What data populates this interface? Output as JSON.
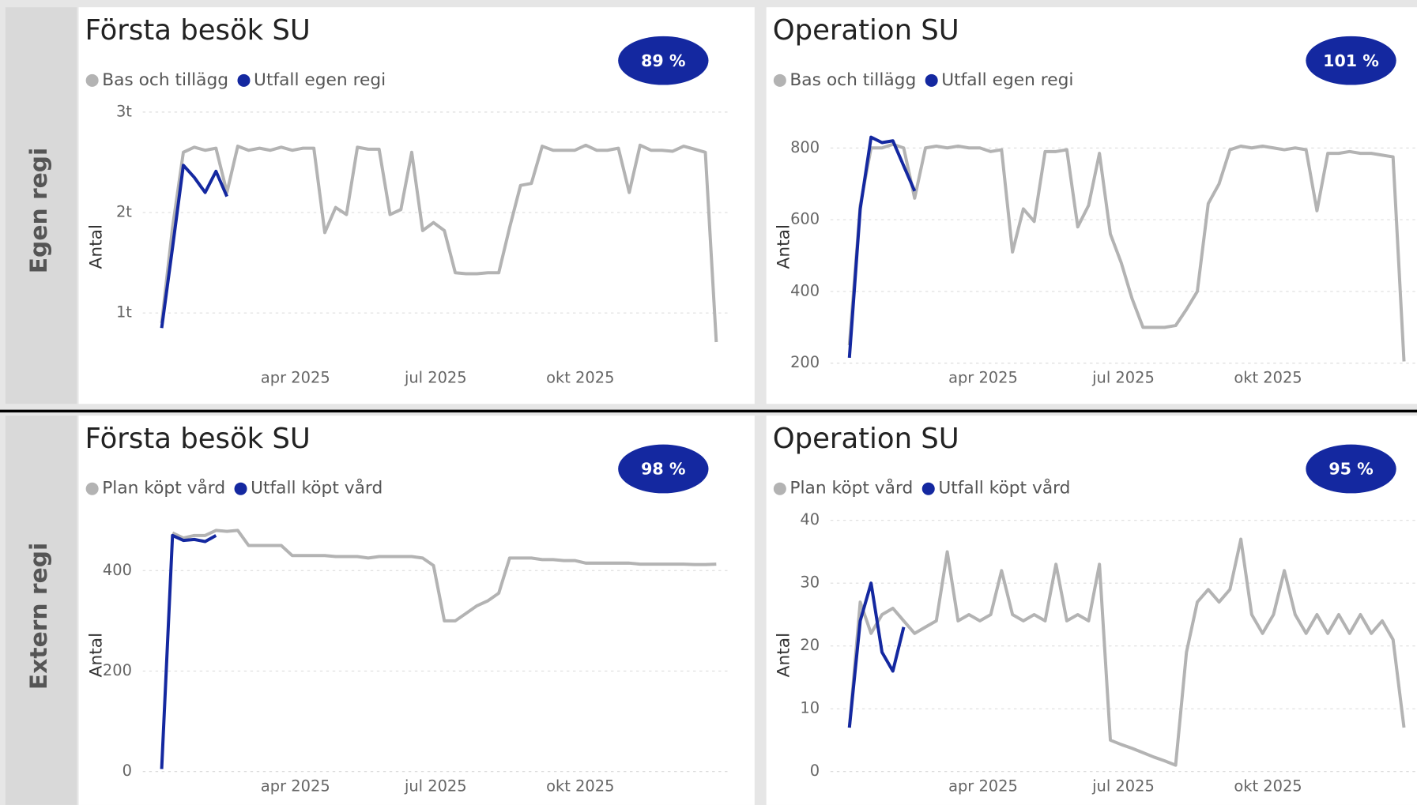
{
  "sections": [
    {
      "label": "Egen regi"
    },
    {
      "label": "Extern regi"
    }
  ],
  "chart_data": [
    {
      "type": "line",
      "title": "Första besök SU",
      "kpi": "89 %",
      "y_label": "Antal",
      "x": [
        1,
        2,
        3,
        4,
        5,
        6,
        7,
        8,
        9,
        10,
        11,
        12,
        13,
        14,
        15,
        16,
        17,
        18,
        19,
        20,
        21,
        22,
        23,
        24,
        25,
        26,
        27,
        28,
        29,
        30,
        31,
        32,
        33,
        34,
        35,
        36,
        37,
        38,
        39,
        40,
        41,
        42,
        43,
        44,
        45,
        46,
        47,
        48,
        49,
        50,
        51,
        52
      ],
      "xlim": [
        -1.4,
        53.2
      ],
      "xticks": [
        {
          "value": 13.3,
          "label": "apr 2025"
        },
        {
          "value": 26.2,
          "label": "jul 2025"
        },
        {
          "value": 39.5,
          "label": "okt 2025"
        }
      ],
      "ylim": [
        500,
        3000
      ],
      "yticks": [
        {
          "value": 1000,
          "label": "1t"
        },
        {
          "value": 2000,
          "label": "2t"
        },
        {
          "value": 3000,
          "label": "3t"
        }
      ],
      "grid": true,
      "series": [
        {
          "name": "Bas och tillägg",
          "color": "#b3b3b3",
          "values": [
            900,
            1850,
            2600,
            2650,
            2620,
            2640,
            2200,
            2660,
            2620,
            2640,
            2620,
            2650,
            2620,
            2640,
            2640,
            1800,
            2050,
            1980,
            2650,
            2630,
            2630,
            1980,
            2030,
            2600,
            1820,
            1900,
            1820,
            1400,
            1390,
            1390,
            1400,
            1400,
            1850,
            2270,
            2290,
            2660,
            2620,
            2620,
            2620,
            2670,
            2620,
            2620,
            2640,
            2200,
            2670,
            2620,
            2620,
            2610,
            2660,
            2630,
            2600,
            710
          ]
        },
        {
          "name": "Utfall egen regi",
          "color": "#1428a0",
          "values": [
            850,
            1650,
            2470,
            2350,
            2200,
            2410,
            2160,
            null,
            null,
            null,
            null,
            null,
            null,
            null,
            null,
            null,
            null,
            null,
            null,
            null,
            null,
            null,
            null,
            null,
            null,
            null,
            null,
            null,
            null,
            null,
            null,
            null,
            null,
            null,
            null,
            null,
            null,
            null,
            null,
            null,
            null,
            null,
            null,
            null,
            null,
            null,
            null,
            null,
            null,
            null,
            null,
            null
          ]
        }
      ]
    },
    {
      "type": "line",
      "title": "Operation SU",
      "kpi": "101 %",
      "y_label": "Antal",
      "x": [
        1,
        2,
        3,
        4,
        5,
        6,
        7,
        8,
        9,
        10,
        11,
        12,
        13,
        14,
        15,
        16,
        17,
        18,
        19,
        20,
        21,
        22,
        23,
        24,
        25,
        26,
        27,
        28,
        29,
        30,
        31,
        32,
        33,
        34,
        35,
        36,
        37,
        38,
        39,
        40,
        41,
        42,
        43,
        44,
        45,
        46,
        47,
        48,
        49,
        50,
        51,
        52
      ],
      "xlim": [
        -1.4,
        53.2
      ],
      "xticks": [
        {
          "value": 13.3,
          "label": "apr 2025"
        },
        {
          "value": 26.2,
          "label": "jul 2025"
        },
        {
          "value": 39.5,
          "label": "okt 2025"
        }
      ],
      "ylim": [
        200,
        900
      ],
      "yticks": [
        200,
        400,
        600,
        800
      ],
      "grid": true,
      "series": [
        {
          "name": "Bas och tillägg",
          "color": "#b3b3b3",
          "values": [
            250,
            640,
            800,
            800,
            810,
            800,
            660,
            800,
            805,
            800,
            805,
            800,
            800,
            790,
            795,
            510,
            630,
            595,
            790,
            790,
            795,
            580,
            640,
            785,
            560,
            480,
            380,
            300,
            300,
            300,
            305,
            350,
            400,
            645,
            700,
            795,
            805,
            800,
            805,
            800,
            795,
            800,
            795,
            625,
            785,
            785,
            790,
            785,
            785,
            780,
            775,
            205
          ]
        },
        {
          "name": "Utfall egen regi",
          "color": "#1428a0",
          "values": [
            215,
            630,
            830,
            815,
            820,
            750,
            680,
            null,
            null,
            null,
            null,
            null,
            null,
            null,
            null,
            null,
            null,
            null,
            null,
            null,
            null,
            null,
            null,
            null,
            null,
            null,
            null,
            null,
            null,
            null,
            null,
            null,
            null,
            null,
            null,
            null,
            null,
            null,
            null,
            null,
            null,
            null,
            null,
            null,
            null,
            null,
            null,
            null,
            null,
            null,
            null,
            null
          ]
        }
      ]
    },
    {
      "type": "line",
      "title": "Första besök SU",
      "kpi": "98 %",
      "y_label": "Antal",
      "x": [
        1,
        2,
        3,
        4,
        5,
        6,
        7,
        8,
        9,
        10,
        11,
        12,
        13,
        14,
        15,
        16,
        17,
        18,
        19,
        20,
        21,
        22,
        23,
        24,
        25,
        26,
        27,
        28,
        29,
        30,
        31,
        32,
        33,
        34,
        35,
        36,
        37,
        38,
        39,
        40,
        41,
        42,
        43,
        44,
        45,
        46,
        47,
        48,
        49,
        50,
        51,
        52
      ],
      "xlim": [
        -1.4,
        53.2
      ],
      "xticks": [
        {
          "value": 13.3,
          "label": "apr 2025"
        },
        {
          "value": 26.2,
          "label": "jul 2025"
        },
        {
          "value": 39.5,
          "label": "okt 2025"
        }
      ],
      "ylim": [
        0,
        500
      ],
      "yticks": [
        0,
        200,
        400
      ],
      "grid": true,
      "series": [
        {
          "name": "Plan köpt vård",
          "color": "#b3b3b3",
          "values": [
            null,
            475,
            465,
            470,
            470,
            480,
            478,
            480,
            450,
            450,
            450,
            450,
            430,
            430,
            430,
            430,
            428,
            428,
            428,
            425,
            428,
            428,
            428,
            428,
            425,
            410,
            300,
            300,
            315,
            330,
            340,
            355,
            425,
            425,
            425,
            422,
            422,
            420,
            420,
            415,
            415,
            415,
            415,
            415,
            413,
            413,
            413,
            413,
            413,
            412,
            412,
            413
          ]
        },
        {
          "name": "Utfall köpt vård",
          "color": "#1428a0",
          "values": [
            5,
            470,
            460,
            462,
            458,
            470,
            null,
            null,
            null,
            null,
            null,
            null,
            null,
            null,
            null,
            null,
            null,
            null,
            null,
            null,
            null,
            null,
            null,
            null,
            null,
            null,
            null,
            null,
            null,
            null,
            null,
            null,
            null,
            null,
            null,
            null,
            null,
            null,
            null,
            null,
            null,
            null,
            null,
            null,
            null,
            null,
            null,
            null,
            null,
            null,
            null,
            null
          ]
        }
      ]
    },
    {
      "type": "line",
      "title": "Operation SU",
      "kpi": "95 %",
      "y_label": "Antal",
      "x": [
        1,
        2,
        3,
        4,
        5,
        6,
        7,
        8,
        9,
        10,
        11,
        12,
        13,
        14,
        15,
        16,
        17,
        18,
        19,
        20,
        21,
        22,
        23,
        24,
        25,
        26,
        27,
        28,
        29,
        30,
        31,
        32,
        33,
        34,
        35,
        36,
        37,
        38,
        39,
        40,
        41,
        42,
        43,
        44,
        45,
        46,
        47,
        48,
        49,
        50,
        51,
        52
      ],
      "xlim": [
        -1.4,
        53.2
      ],
      "xticks": [
        {
          "value": 13.3,
          "label": "apr 2025"
        },
        {
          "value": 26.2,
          "label": "jul 2025"
        },
        {
          "value": 39.5,
          "label": "okt 2025"
        }
      ],
      "ylim": [
        0,
        40
      ],
      "yticks": [
        0,
        10,
        20,
        30,
        40
      ],
      "grid": true,
      "series": [
        {
          "name": "Plan köpt vård",
          "color": "#b3b3b3",
          "values": [
            7,
            27,
            22,
            25,
            26,
            24,
            22,
            23,
            24,
            35,
            24,
            25,
            24,
            25,
            32,
            25,
            24,
            25,
            24,
            33,
            24,
            25,
            24,
            33,
            5,
            4.3,
            3.7,
            3,
            2.3,
            1.7,
            1,
            19,
            27,
            29,
            27,
            29,
            37,
            25,
            22,
            25,
            32,
            25,
            22,
            25,
            22,
            25,
            22,
            25,
            22,
            24,
            21,
            7
          ]
        },
        {
          "name": "Utfall köpt vård",
          "color": "#1428a0",
          "values": [
            7,
            24,
            30,
            19,
            16,
            23,
            null,
            null,
            null,
            null,
            null,
            null,
            null,
            null,
            null,
            null,
            null,
            null,
            null,
            null,
            null,
            null,
            null,
            null,
            null,
            null,
            null,
            null,
            null,
            null,
            null,
            null,
            null,
            null,
            null,
            null,
            null,
            null,
            null,
            null,
            null,
            null,
            null,
            null,
            null,
            null,
            null,
            null,
            null,
            null,
            null,
            null
          ]
        }
      ]
    }
  ]
}
